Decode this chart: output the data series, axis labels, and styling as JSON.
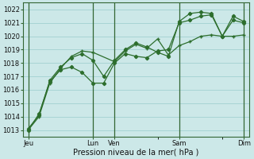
{
  "title": "Pression niveau de la mer( hPa )",
  "bg_color": "#cce8e8",
  "grid_color": "#99cccc",
  "line_color": "#2d6e2d",
  "marker_color": "#2d6e2d",
  "ylim": [
    1012.5,
    1022.5
  ],
  "yticks": [
    1013,
    1014,
    1015,
    1016,
    1017,
    1018,
    1019,
    1020,
    1021,
    1022
  ],
  "xlim": [
    -0.5,
    20.5
  ],
  "xtick_labels": [
    "Jeu",
    "Lun",
    "Ven",
    "Sam",
    "Dim"
  ],
  "xtick_positions": [
    0,
    6,
    8,
    14,
    20
  ],
  "vlines": [
    0,
    6,
    8,
    14,
    20
  ],
  "series1_x": [
    0,
    1,
    2,
    3,
    4,
    5,
    6,
    7,
    8,
    9,
    10,
    11,
    12,
    13,
    14,
    15,
    16,
    17,
    18,
    19,
    20
  ],
  "series1_y": [
    1013.0,
    1014.2,
    1016.6,
    1017.5,
    1017.7,
    1017.3,
    1016.5,
    1016.5,
    1018.0,
    1018.7,
    1018.5,
    1018.4,
    1018.9,
    1019.0,
    1021.0,
    1021.2,
    1021.5,
    1021.6,
    1020.0,
    1021.2,
    1021.0
  ],
  "series2_x": [
    0,
    1,
    2,
    3,
    4,
    5,
    6,
    7,
    8,
    9,
    10,
    11,
    12,
    13,
    14,
    15,
    16,
    17,
    18,
    19,
    20
  ],
  "series2_y": [
    1013.1,
    1014.1,
    1016.7,
    1017.7,
    1018.4,
    1018.7,
    1018.2,
    1017.0,
    1018.2,
    1019.0,
    1019.5,
    1019.2,
    1018.8,
    1018.5,
    1021.1,
    1021.7,
    1021.8,
    1021.7,
    1020.0,
    1021.5,
    1021.1
  ],
  "series3_x": [
    0,
    1,
    2,
    3,
    4,
    5,
    6,
    8,
    9,
    10,
    11,
    12,
    13,
    14,
    15,
    16,
    17,
    18,
    19,
    20
  ],
  "series3_y": [
    1013.0,
    1014.0,
    1016.5,
    1017.6,
    1018.5,
    1018.9,
    1018.8,
    1018.1,
    1018.9,
    1019.4,
    1019.1,
    1019.8,
    1018.6,
    1019.3,
    1019.6,
    1020.0,
    1020.1,
    1020.0,
    1020.0,
    1020.1
  ],
  "title_fontsize": 7,
  "tick_fontsize": 6
}
